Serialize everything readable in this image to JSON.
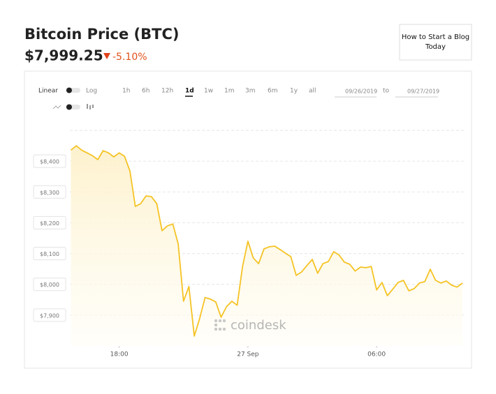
{
  "header": {
    "title": "Bitcoin Price (BTC)",
    "price": "$7,999.25",
    "change": "-5.10%"
  },
  "button": "How to Start a Blog Today",
  "controls": {
    "scales": [
      "Linear",
      "Log"
    ],
    "ranges": [
      "1h",
      "6h",
      "12h",
      "1d",
      "1w",
      "1m",
      "3m",
      "6m",
      "1y",
      "all"
    ],
    "active_range": "1d",
    "from": "09/26/2019",
    "to_label": "to",
    "to": "09/27/2019"
  },
  "watermark": "coindesk",
  "chart_data": {
    "type": "line",
    "color": "#f5c324",
    "x": [
      15.75,
      16,
      16.25,
      16.5,
      16.75,
      17,
      17.25,
      17.5,
      17.75,
      18,
      18.25,
      18.5,
      18.75,
      19,
      19.25,
      19.5,
      19.75,
      20,
      20.25,
      20.5,
      20.75,
      21,
      21.25,
      21.5,
      21.75,
      22,
      22.25,
      22.5,
      22.75,
      23,
      23.25,
      23.5,
      23.75,
      24,
      24.25,
      24.5,
      24.75,
      25,
      25.25,
      25.5,
      25.75,
      26,
      26.25,
      26.5,
      26.75,
      27,
      27.25,
      27.5,
      27.75,
      28,
      28.25,
      28.5,
      28.75,
      29,
      29.25,
      29.5,
      29.75,
      30,
      30.25,
      30.5,
      30.75,
      31,
      31.25,
      31.5,
      31.75,
      32,
      32.25,
      32.5,
      32.75,
      33,
      33.25,
      33.5,
      33.75,
      34
    ],
    "series": [
      {
        "name": "BTC",
        "color": "#f5c324",
        "values": [
          8436,
          8450,
          8436,
          8427,
          8418,
          8405,
          8434,
          8427,
          8414,
          8427,
          8416,
          8368,
          8253,
          8262,
          8287,
          8285,
          8262,
          8174,
          8190,
          8196,
          8131,
          7945,
          7993,
          7832,
          7889,
          7957,
          7952,
          7943,
          7893,
          7927,
          7945,
          7932,
          8058,
          8140,
          8086,
          8067,
          8115,
          8122,
          8124,
          8113,
          8101,
          8090,
          8029,
          8040,
          8061,
          8081,
          8036,
          8067,
          8074,
          8106,
          8095,
          8072,
          8065,
          8043,
          8056,
          8054,
          8058,
          7982,
          8006,
          7963,
          7984,
          8006,
          8013,
          7979,
          7986,
          8004,
          8009,
          8049,
          8013,
          8004,
          8011,
          7997,
          7991,
          8004
        ]
      }
    ],
    "xlim": [
      15.7,
      34.1
    ],
    "xticks": [
      {
        "value": 18,
        "label": "18:00"
      },
      {
        "value": 24,
        "label": "27 Sep"
      },
      {
        "value": 30,
        "label": "06:00"
      }
    ],
    "ylim": [
      7800,
      8500
    ],
    "yticks": [
      {
        "value": 7900,
        "label": "$7,900"
      },
      {
        "value": 8000,
        "label": "$8,000"
      },
      {
        "value": 8100,
        "label": "$8,100"
      },
      {
        "value": 8200,
        "label": "$8,200"
      },
      {
        "value": 8300,
        "label": "$8,300"
      },
      {
        "value": 8400,
        "label": "$8,400"
      }
    ],
    "grid": true
  }
}
